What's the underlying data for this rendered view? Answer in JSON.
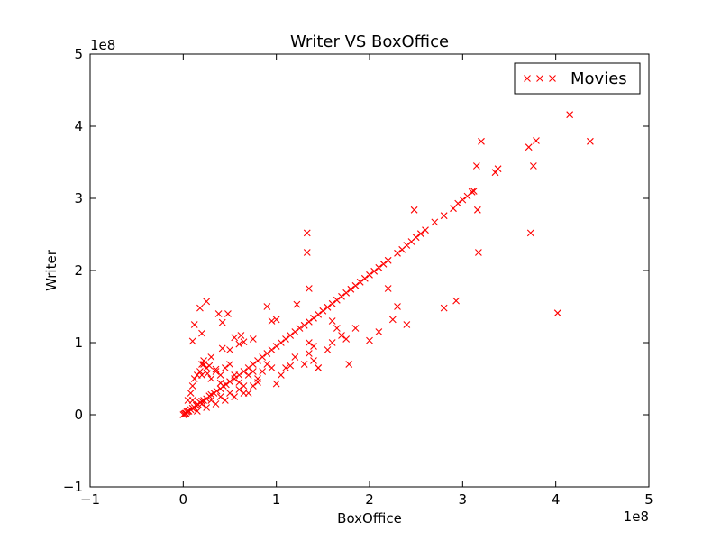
{
  "chart_data": {
    "type": "scatter",
    "title": "Writer VS BoxOffice",
    "xlabel": "BoxOffice",
    "ylabel": "Writer",
    "xlim": [
      -1,
      5
    ],
    "ylim": [
      -1,
      5
    ],
    "x_ticks": [
      "−1",
      "0",
      "1",
      "2",
      "3",
      "4",
      "5"
    ],
    "y_ticks": [
      "−1",
      "0",
      "1",
      "2",
      "3",
      "4",
      "5"
    ],
    "x_multiplier": "1e8",
    "y_multiplier": "1e8",
    "grid": false,
    "legend": {
      "position": "top-right",
      "entries": [
        "Movies"
      ]
    },
    "marker": "x",
    "color": "#ff0000",
    "series": [
      {
        "name": "Movies",
        "points": [
          [
            0.0,
            0.0
          ],
          [
            0.01,
            0.01
          ],
          [
            0.02,
            0.02
          ],
          [
            0.03,
            0.02
          ],
          [
            0.04,
            0.04
          ],
          [
            0.05,
            0.05
          ],
          [
            0.06,
            0.05
          ],
          [
            0.08,
            0.07
          ],
          [
            0.1,
            0.09
          ],
          [
            0.12,
            0.1
          ],
          [
            0.14,
            0.13
          ],
          [
            0.16,
            0.14
          ],
          [
            0.18,
            0.17
          ],
          [
            0.2,
            0.19
          ],
          [
            0.22,
            0.2
          ],
          [
            0.25,
            0.22
          ],
          [
            0.28,
            0.26
          ],
          [
            0.3,
            0.28
          ],
          [
            0.33,
            0.3
          ],
          [
            0.36,
            0.33
          ],
          [
            0.4,
            0.36
          ],
          [
            0.43,
            0.4
          ],
          [
            0.46,
            0.42
          ],
          [
            0.5,
            0.46
          ],
          [
            0.55,
            0.5
          ],
          [
            0.6,
            0.55
          ],
          [
            0.65,
            0.6
          ],
          [
            0.7,
            0.65
          ],
          [
            0.75,
            0.7
          ],
          [
            0.8,
            0.75
          ],
          [
            0.85,
            0.8
          ],
          [
            0.9,
            0.85
          ],
          [
            0.95,
            0.9
          ],
          [
            1.0,
            0.95
          ],
          [
            1.05,
            1.0
          ],
          [
            1.1,
            1.05
          ],
          [
            1.15,
            1.1
          ],
          [
            1.2,
            1.15
          ],
          [
            1.25,
            1.2
          ],
          [
            1.3,
            1.24
          ],
          [
            1.35,
            1.29
          ],
          [
            1.4,
            1.34
          ],
          [
            1.45,
            1.39
          ],
          [
            1.5,
            1.44
          ],
          [
            1.55,
            1.49
          ],
          [
            1.6,
            1.54
          ],
          [
            1.65,
            1.59
          ],
          [
            1.7,
            1.64
          ],
          [
            1.75,
            1.69
          ],
          [
            1.8,
            1.74
          ],
          [
            1.85,
            1.79
          ],
          [
            1.9,
            1.84
          ],
          [
            1.95,
            1.89
          ],
          [
            2.0,
            1.94
          ],
          [
            2.05,
            1.99
          ],
          [
            2.1,
            2.04
          ],
          [
            2.15,
            2.09
          ],
          [
            2.2,
            2.14
          ],
          [
            2.3,
            2.24
          ],
          [
            2.35,
            2.29
          ],
          [
            2.4,
            2.35
          ],
          [
            2.45,
            2.4
          ],
          [
            2.5,
            2.46
          ],
          [
            2.55,
            2.51
          ],
          [
            2.6,
            2.56
          ],
          [
            2.7,
            2.67
          ],
          [
            2.8,
            2.76
          ],
          [
            2.9,
            2.86
          ],
          [
            2.95,
            2.93
          ],
          [
            3.0,
            2.98
          ],
          [
            3.05,
            3.03
          ],
          [
            3.1,
            3.09
          ],
          [
            3.12,
            3.1
          ],
          [
            0.05,
            0.2
          ],
          [
            0.08,
            0.3
          ],
          [
            0.1,
            0.4
          ],
          [
            0.12,
            0.5
          ],
          [
            0.15,
            0.55
          ],
          [
            0.18,
            0.6
          ],
          [
            0.2,
            0.7
          ],
          [
            0.22,
            0.75
          ],
          [
            0.25,
            0.65
          ],
          [
            0.3,
            0.5
          ],
          [
            0.35,
            0.6
          ],
          [
            0.4,
            0.55
          ],
          [
            0.45,
            0.65
          ],
          [
            0.5,
            0.7
          ],
          [
            0.55,
            0.55
          ],
          [
            0.6,
            0.45
          ],
          [
            0.65,
            0.4
          ],
          [
            0.7,
            0.55
          ],
          [
            0.75,
            0.6
          ],
          [
            0.8,
            0.5
          ],
          [
            0.85,
            0.6
          ],
          [
            0.9,
            0.7
          ],
          [
            0.95,
            0.65
          ],
          [
            0.1,
            0.2
          ],
          [
            0.2,
            0.15
          ],
          [
            0.3,
            0.2
          ],
          [
            0.4,
            0.25
          ],
          [
            0.5,
            0.3
          ],
          [
            0.55,
            0.25
          ],
          [
            0.6,
            0.35
          ],
          [
            0.15,
            0.05
          ],
          [
            0.25,
            0.1
          ],
          [
            0.35,
            0.15
          ],
          [
            0.45,
            0.2
          ],
          [
            0.65,
            0.3
          ],
          [
            0.7,
            0.3
          ],
          [
            0.75,
            0.4
          ],
          [
            0.8,
            0.45
          ],
          [
            1.0,
            0.43
          ],
          [
            1.05,
            0.55
          ],
          [
            1.1,
            0.65
          ],
          [
            1.15,
            0.68
          ],
          [
            1.2,
            0.8
          ],
          [
            1.3,
            0.7
          ],
          [
            1.35,
            0.85
          ],
          [
            1.4,
            0.75
          ],
          [
            1.45,
            0.65
          ],
          [
            1.55,
            0.9
          ],
          [
            1.6,
            1.0
          ],
          [
            1.65,
            1.2
          ],
          [
            1.7,
            1.1
          ],
          [
            1.78,
            0.7
          ],
          [
            1.85,
            1.2
          ],
          [
            2.0,
            1.03
          ],
          [
            2.1,
            1.15
          ],
          [
            2.2,
            1.75
          ],
          [
            2.25,
            1.32
          ],
          [
            2.3,
            1.5
          ],
          [
            2.4,
            1.25
          ],
          [
            2.48,
            2.84
          ],
          [
            2.8,
            1.48
          ],
          [
            2.93,
            1.58
          ],
          [
            3.16,
            2.84
          ],
          [
            3.17,
            2.25
          ],
          [
            3.2,
            3.79
          ],
          [
            3.15,
            3.45
          ],
          [
            3.35,
            3.36
          ],
          [
            3.38,
            3.41
          ],
          [
            3.71,
            3.71
          ],
          [
            3.73,
            2.52
          ],
          [
            3.76,
            3.45
          ],
          [
            3.79,
            3.8
          ],
          [
            4.02,
            1.41
          ],
          [
            4.15,
            4.16
          ],
          [
            4.37,
            3.79
          ],
          [
            1.33,
            2.52
          ],
          [
            1.33,
            2.25
          ],
          [
            1.35,
            1.75
          ],
          [
            1.35,
            1.0
          ],
          [
            1.45,
            0.65
          ],
          [
            1.4,
            0.95
          ],
          [
            1.6,
            1.3
          ],
          [
            1.75,
            1.05
          ],
          [
            0.12,
            1.25
          ],
          [
            0.1,
            1.02
          ],
          [
            0.2,
            1.13
          ],
          [
            0.25,
            1.57
          ],
          [
            0.18,
            1.48
          ],
          [
            0.38,
            1.4
          ],
          [
            0.48,
            1.4
          ],
          [
            0.42,
            1.28
          ],
          [
            0.62,
            1.1
          ],
          [
            0.65,
            1.01
          ],
          [
            0.75,
            1.05
          ],
          [
            0.9,
            1.5
          ],
          [
            0.95,
            1.3
          ],
          [
            1.0,
            1.32
          ],
          [
            1.22,
            1.53
          ],
          [
            0.55,
            1.07
          ],
          [
            0.6,
            0.98
          ],
          [
            0.5,
            0.9
          ],
          [
            0.42,
            0.92
          ],
          [
            0.3,
            0.8
          ],
          [
            0.22,
            0.7
          ],
          [
            0.28,
            0.68
          ],
          [
            0.35,
            0.63
          ],
          [
            0.2,
            0.55
          ],
          [
            0.26,
            0.57
          ],
          [
            0.4,
            0.44
          ]
        ]
      }
    ]
  }
}
